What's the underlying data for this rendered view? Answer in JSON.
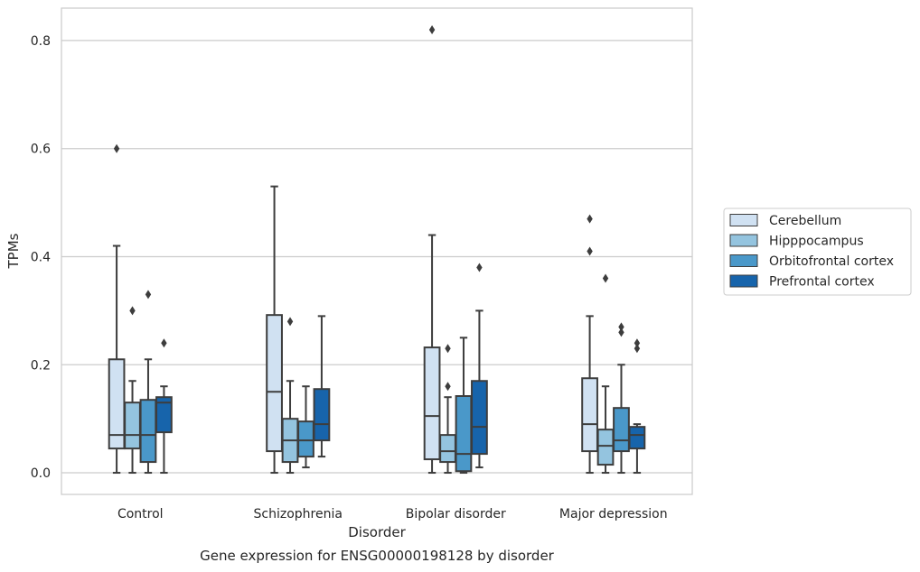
{
  "chart_data": {
    "type": "box",
    "title": "Gene expression for ENSG00000198128 by disorder",
    "xlabel": "Disorder",
    "ylabel": "TPMs",
    "ylim": [
      -0.04,
      0.86
    ],
    "yticks": [
      0.0,
      0.2,
      0.4,
      0.6,
      0.8
    ],
    "ytick_labels": [
      "0.0",
      "0.2",
      "0.4",
      "0.6",
      "0.8"
    ],
    "grid": "horizontal",
    "legend_position": "right",
    "categories": [
      "Control",
      "Schizophrenia",
      "Bipolar disorder",
      "Major depression"
    ],
    "series": [
      {
        "name": "Cerebellum",
        "color": "#d0e1f2",
        "boxes": [
          {
            "whislo": 0.0,
            "q1": 0.045,
            "med": 0.07,
            "q3": 0.21,
            "whishi": 0.42,
            "fliers": [
              0.6
            ]
          },
          {
            "whislo": 0.0,
            "q1": 0.04,
            "med": 0.15,
            "q3": 0.292,
            "whishi": 0.53,
            "fliers": []
          },
          {
            "whislo": 0.0,
            "q1": 0.025,
            "med": 0.105,
            "q3": 0.232,
            "whishi": 0.44,
            "fliers": [
              0.82
            ]
          },
          {
            "whislo": 0.0,
            "q1": 0.04,
            "med": 0.09,
            "q3": 0.175,
            "whishi": 0.29,
            "fliers": [
              0.41,
              0.47
            ]
          }
        ]
      },
      {
        "name": "Hipppocampus",
        "color": "#94c4df",
        "boxes": [
          {
            "whislo": 0.0,
            "q1": 0.045,
            "med": 0.07,
            "q3": 0.13,
            "whishi": 0.17,
            "fliers": [
              0.3
            ]
          },
          {
            "whislo": 0.0,
            "q1": 0.02,
            "med": 0.06,
            "q3": 0.1,
            "whishi": 0.17,
            "fliers": [
              0.28
            ]
          },
          {
            "whislo": 0.0,
            "q1": 0.02,
            "med": 0.04,
            "q3": 0.07,
            "whishi": 0.14,
            "fliers": [
              0.16,
              0.23
            ]
          },
          {
            "whislo": 0.0,
            "q1": 0.015,
            "med": 0.05,
            "q3": 0.08,
            "whishi": 0.16,
            "fliers": [
              0.36
            ]
          }
        ]
      },
      {
        "name": "Orbitofrontal cortex",
        "color": "#4a98c9",
        "boxes": [
          {
            "whislo": 0.0,
            "q1": 0.02,
            "med": 0.07,
            "q3": 0.135,
            "whishi": 0.21,
            "fliers": [
              0.33
            ]
          },
          {
            "whislo": 0.01,
            "q1": 0.03,
            "med": 0.06,
            "q3": 0.095,
            "whishi": 0.16,
            "fliers": []
          },
          {
            "whislo": 0.0,
            "q1": 0.003,
            "med": 0.035,
            "q3": 0.142,
            "whishi": 0.25,
            "fliers": []
          },
          {
            "whislo": 0.0,
            "q1": 0.04,
            "med": 0.06,
            "q3": 0.12,
            "whishi": 0.2,
            "fliers": [
              0.26,
              0.27
            ]
          }
        ]
      },
      {
        "name": "Prefrontal cortex",
        "color": "#1764ab",
        "boxes": [
          {
            "whislo": 0.0,
            "q1": 0.075,
            "med": 0.13,
            "q3": 0.14,
            "whishi": 0.16,
            "fliers": [
              0.24
            ]
          },
          {
            "whislo": 0.03,
            "q1": 0.06,
            "med": 0.09,
            "q3": 0.155,
            "whishi": 0.29,
            "fliers": []
          },
          {
            "whislo": 0.01,
            "q1": 0.035,
            "med": 0.085,
            "q3": 0.17,
            "whishi": 0.3,
            "fliers": [
              0.38
            ]
          },
          {
            "whislo": 0.0,
            "q1": 0.045,
            "med": 0.07,
            "q3": 0.085,
            "whishi": 0.09,
            "fliers": [
              0.23,
              0.24
            ]
          }
        ]
      }
    ]
  },
  "colors": {
    "grid": "#cccccc",
    "frame": "#cccccc",
    "box_edge": "#3d3d3d",
    "text": "#262626"
  }
}
